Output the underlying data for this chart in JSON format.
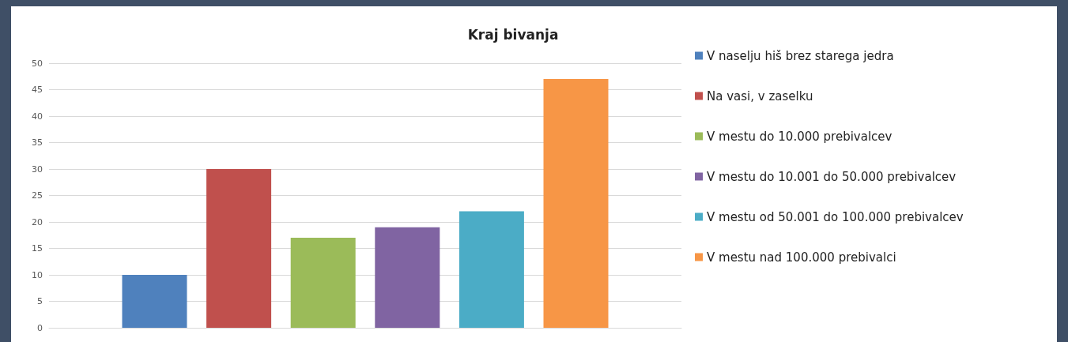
{
  "chart_data": {
    "type": "bar",
    "title": "Kraj bivanja",
    "categories": [
      null
    ],
    "series": [
      {
        "name": "V naselju hiš brez starega jedra",
        "color": "#4f81bd",
        "values": [
          10
        ]
      },
      {
        "name": "Na vasi, v zaselku",
        "color": "#c0504d",
        "values": [
          30
        ]
      },
      {
        "name": "V mestu do 10.000 prebivalcev",
        "color": "#9bbb59",
        "values": [
          17
        ]
      },
      {
        "name": "V mestu do 10.001 do 50.000 prebivalcev",
        "color": "#8064a2",
        "values": [
          19
        ]
      },
      {
        "name": "V mestu od 50.001 do 100.000 prebivalcev",
        "color": "#4bacc6",
        "values": [
          22
        ]
      },
      {
        "name": "V mestu nad 100.000 prebivalci",
        "color": "#f79646",
        "values": [
          47
        ]
      }
    ],
    "ylim": [
      0,
      50
    ],
    "yticks": [
      0,
      5,
      10,
      15,
      20,
      25,
      30,
      35,
      40,
      45,
      50
    ],
    "grid": "y",
    "legend": "right"
  }
}
